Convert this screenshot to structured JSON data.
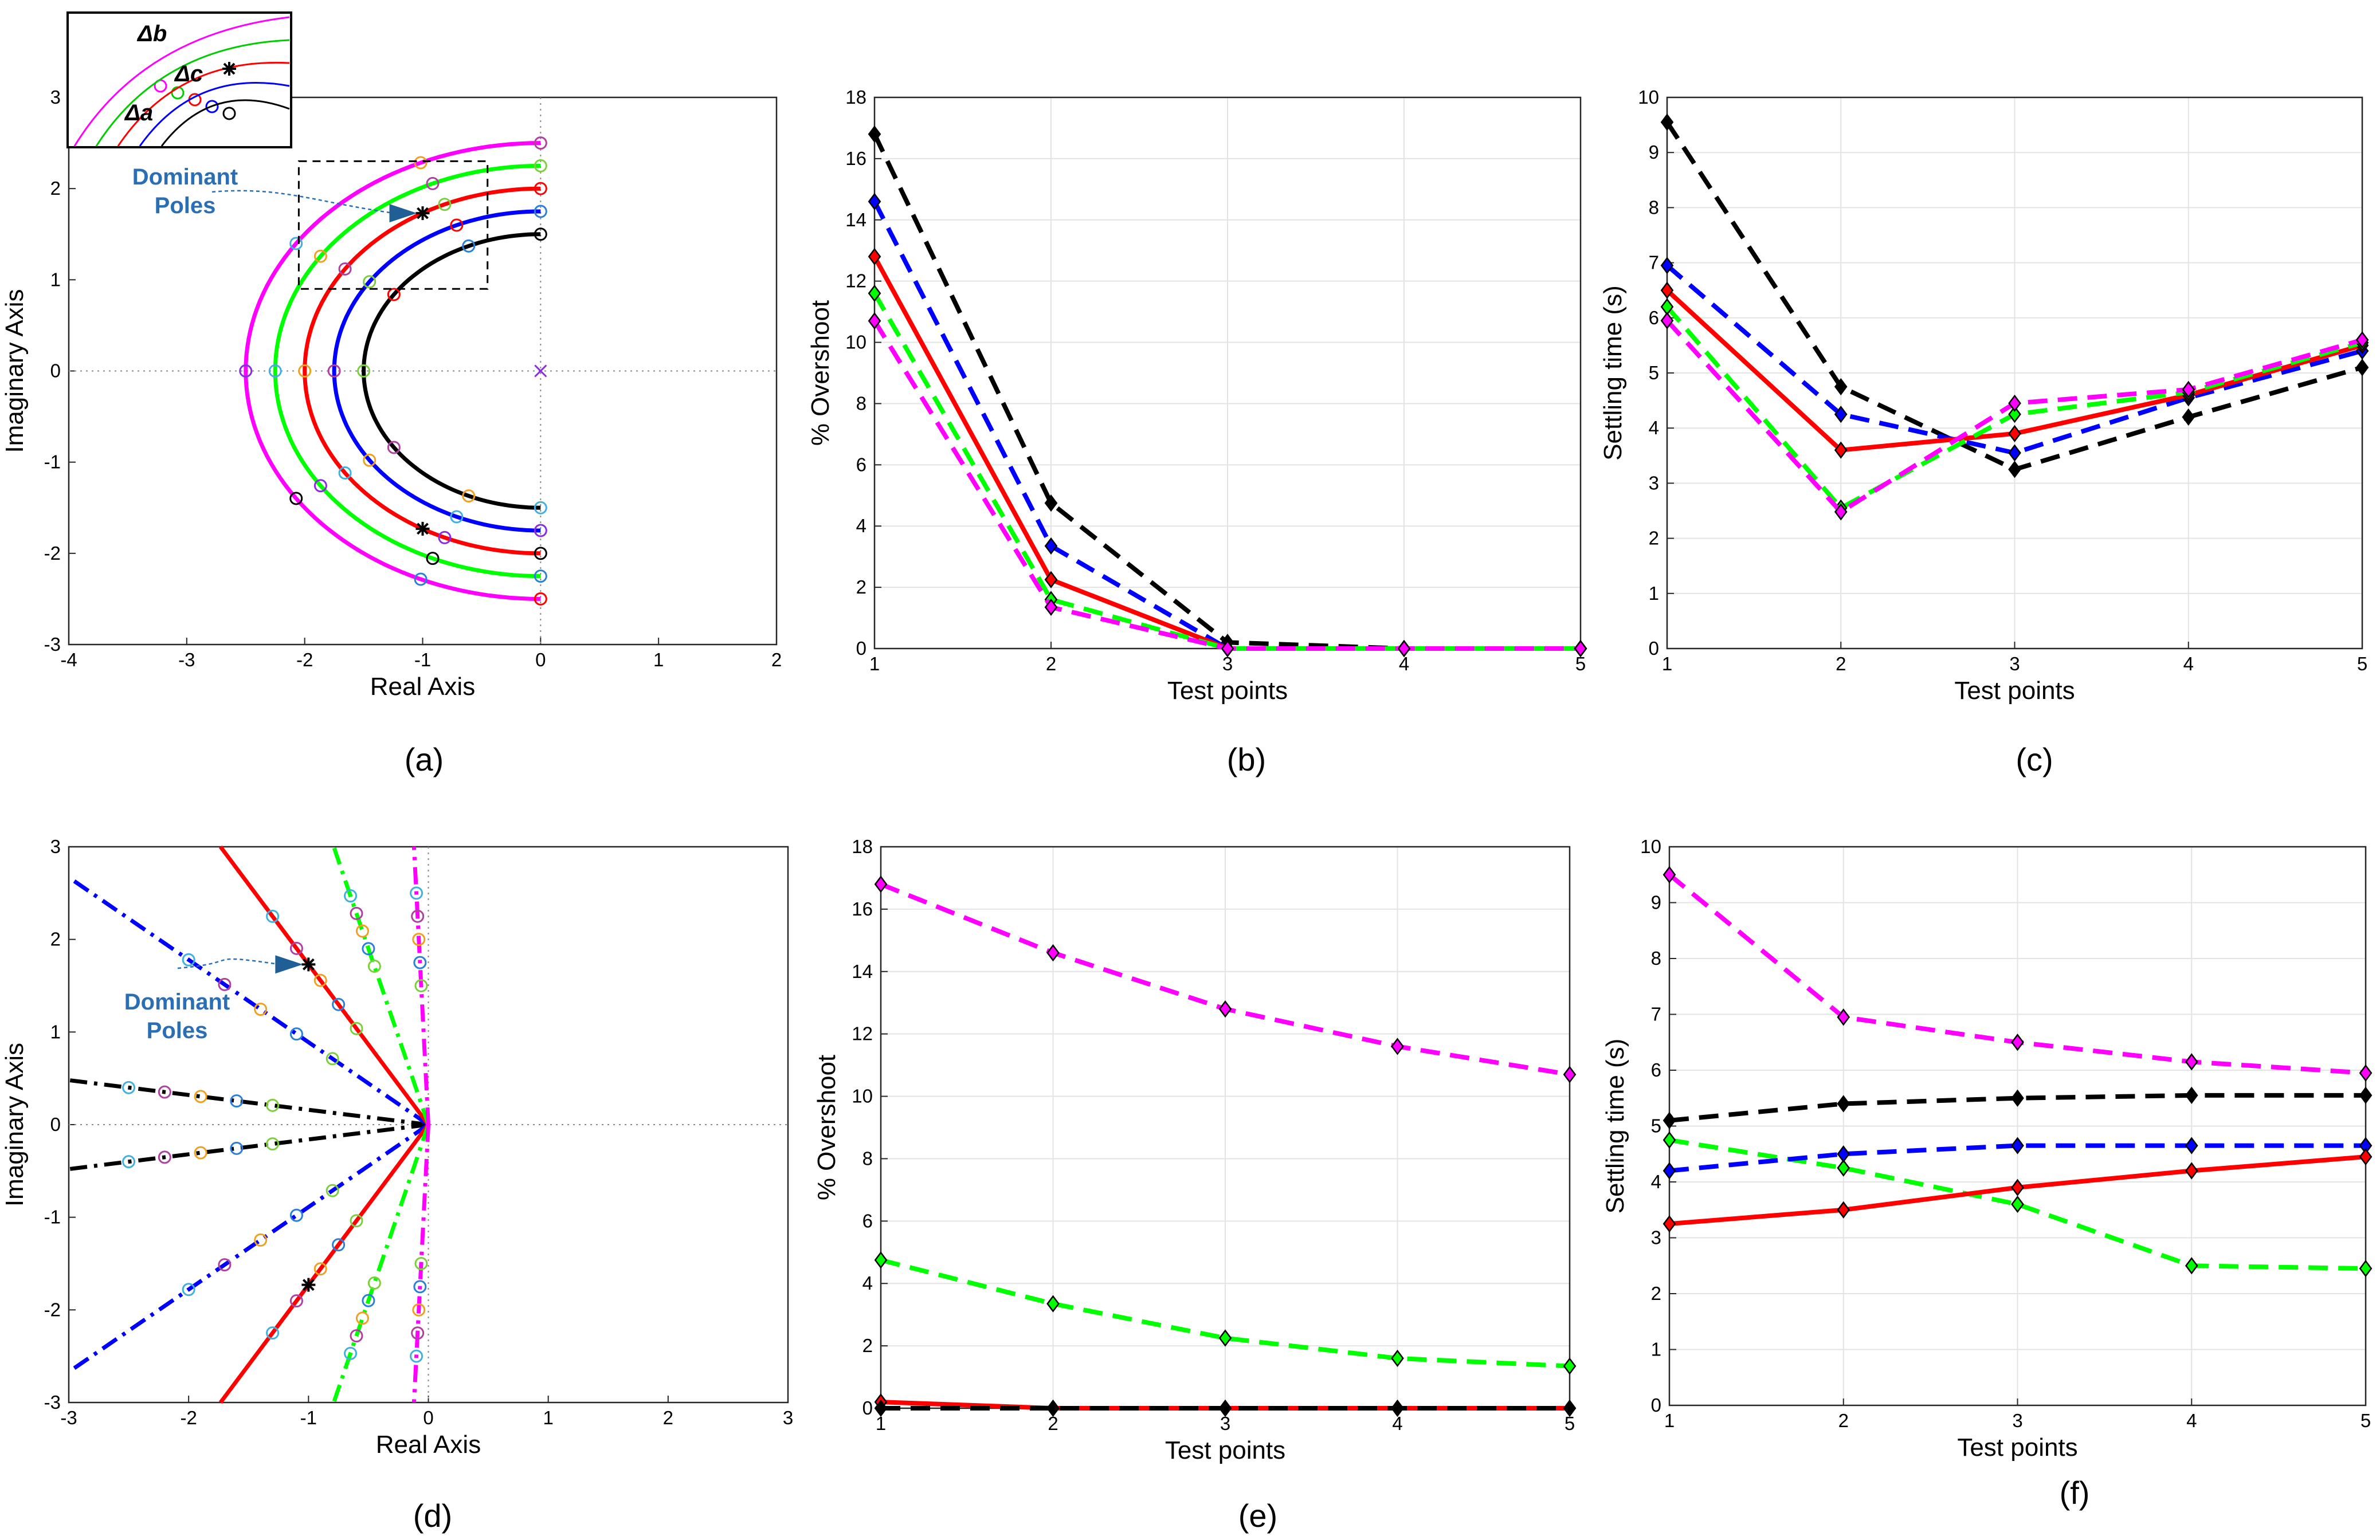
{
  "colors": {
    "black": "#000000",
    "blue": "#0000ff",
    "red": "#ff0000",
    "green": "#00ff00",
    "magenta": "#ff00ff",
    "annotation": "#2a6fb5"
  },
  "chart_data": [
    {
      "id": "a",
      "type": "scatter",
      "panel_label": "(a)",
      "xlabel": "Real Axis",
      "ylabel": "Imaginary Axis",
      "xlim": [
        -4,
        2
      ],
      "ylim": [
        -3,
        3
      ],
      "xticks": [
        -4,
        -3,
        -2,
        -1,
        0,
        1,
        2
      ],
      "yticks": [
        -3,
        -2,
        -1,
        0,
        1,
        2,
        3
      ],
      "xtick_labels": [
        "-4",
        "-3",
        "-2",
        "-1",
        "0",
        "1",
        "2"
      ],
      "ytick_labels": [
        "-3",
        "-2",
        "-1",
        "0",
        "1",
        "2",
        "3"
      ],
      "annotation": [
        "Dominant",
        "Poles"
      ],
      "inset_labels": [
        "Δb",
        "Δc",
        "Δa"
      ],
      "open_loop_pole": [
        0,
        0
      ],
      "dominant_poles": [
        [
          -1,
          1.73
        ],
        [
          -1,
          -1.73
        ]
      ],
      "series": [
        {
          "name": "black",
          "color": "#000000",
          "radius": 1.5
        },
        {
          "name": "blue",
          "color": "#0000ff",
          "radius": 1.75
        },
        {
          "name": "red",
          "color": "#ff0000",
          "radius": 2.0
        },
        {
          "name": "green",
          "color": "#00ff00",
          "radius": 2.25
        },
        {
          "name": "magenta",
          "color": "#ff00ff",
          "radius": 2.5
        }
      ]
    },
    {
      "id": "b",
      "type": "line",
      "panel_label": "(b)",
      "xlabel": "Test points",
      "ylabel": "% Overshoot",
      "x": [
        1,
        2,
        3,
        4,
        5
      ],
      "xlim": [
        1,
        5
      ],
      "ylim": [
        0,
        18
      ],
      "xticks": [
        1,
        2,
        3,
        4,
        5
      ],
      "yticks": [
        0,
        2,
        4,
        6,
        8,
        10,
        12,
        14,
        16,
        18
      ],
      "xtick_labels": [
        "1",
        "2",
        "3",
        "4",
        "5"
      ],
      "ytick_labels": [
        "0",
        "2",
        "4",
        "6",
        "8",
        "10",
        "12",
        "14",
        "16",
        "18"
      ],
      "series": [
        {
          "name": "black",
          "color": "#000000",
          "dash": true,
          "values": [
            16.8,
            4.75,
            0.2,
            0,
            0
          ]
        },
        {
          "name": "blue",
          "color": "#0000ff",
          "dash": true,
          "values": [
            14.6,
            3.35,
            0,
            0,
            0
          ]
        },
        {
          "name": "red",
          "color": "#ff0000",
          "dash": false,
          "values": [
            12.8,
            2.25,
            0,
            0,
            0
          ]
        },
        {
          "name": "green",
          "color": "#00ff00",
          "dash": true,
          "values": [
            11.6,
            1.6,
            0,
            0,
            0
          ]
        },
        {
          "name": "magenta",
          "color": "#ff00ff",
          "dash": true,
          "values": [
            10.7,
            1.35,
            0,
            0,
            0
          ]
        }
      ]
    },
    {
      "id": "c",
      "type": "line",
      "panel_label": "(c)",
      "xlabel": "Test points",
      "ylabel": "Settling time (s)",
      "x": [
        1,
        2,
        3,
        4,
        5
      ],
      "xlim": [
        1,
        5
      ],
      "ylim": [
        0,
        10
      ],
      "xticks": [
        1,
        2,
        3,
        4,
        5
      ],
      "yticks": [
        0,
        1,
        2,
        3,
        4,
        5,
        6,
        7,
        8,
        9,
        10
      ],
      "xtick_labels": [
        "1",
        "2",
        "3",
        "4",
        "5"
      ],
      "ytick_labels": [
        "0",
        "1",
        "2",
        "3",
        "4",
        "5",
        "6",
        "7",
        "8",
        "9",
        "10"
      ],
      "series": [
        {
          "name": "black",
          "color": "#000000",
          "dash": true,
          "values": [
            9.55,
            4.75,
            3.25,
            4.2,
            5.1
          ]
        },
        {
          "name": "blue",
          "color": "#0000ff",
          "dash": true,
          "values": [
            6.95,
            4.25,
            3.55,
            4.55,
            5.4
          ]
        },
        {
          "name": "red",
          "color": "#ff0000",
          "dash": false,
          "values": [
            6.5,
            3.6,
            3.9,
            4.6,
            5.5
          ]
        },
        {
          "name": "green",
          "color": "#00ff00",
          "dash": true,
          "values": [
            6.2,
            2.55,
            4.25,
            4.65,
            5.55
          ]
        },
        {
          "name": "magenta",
          "color": "#ff00ff",
          "dash": true,
          "values": [
            5.95,
            2.48,
            4.45,
            4.7,
            5.6
          ]
        }
      ]
    },
    {
      "id": "d",
      "type": "scatter",
      "panel_label": "(d)",
      "xlabel": "Real Axis",
      "ylabel": "Imaginary Axis",
      "xlim": [
        -3,
        3
      ],
      "ylim": [
        -3,
        3
      ],
      "xticks": [
        -3,
        -2,
        -1,
        0,
        1,
        2,
        3
      ],
      "yticks": [
        -3,
        -2,
        -1,
        0,
        1,
        2,
        3
      ],
      "xtick_labels": [
        "-3",
        "-2",
        "-1",
        "0",
        "1",
        "2",
        "3"
      ],
      "ytick_labels": [
        "-3",
        "-2",
        "-1",
        "0",
        "1",
        "2",
        "3"
      ],
      "annotation": [
        "Dominant",
        "Poles"
      ],
      "dominant_poles": [
        [
          -1,
          1.73
        ],
        [
          -1,
          -1.73
        ]
      ],
      "series": [
        {
          "name": "black",
          "color": "#000000",
          "slope": 0.16,
          "marker_x": [
            -2.5,
            -2.2,
            -1.9,
            -1.6,
            -1.3
          ]
        },
        {
          "name": "blue",
          "color": "#0000ff",
          "slope": 0.89,
          "marker_x": [
            -2.0,
            -1.7,
            -1.4,
            -1.1,
            -0.8
          ]
        },
        {
          "name": "red",
          "color": "#ff0000",
          "slope": 1.73,
          "marker_x": [
            -1.3,
            -1.1,
            -0.9,
            -0.75,
            -0.6
          ]
        },
        {
          "name": "green",
          "color": "#00ff00",
          "slope": 3.8,
          "marker_x": [
            -0.65,
            -0.6,
            -0.55,
            -0.5,
            -0.45
          ]
        },
        {
          "name": "magenta",
          "color": "#ff00ff",
          "slope": 25,
          "marker_x": [
            -0.1,
            -0.09,
            -0.08,
            -0.07,
            -0.06
          ]
        }
      ]
    },
    {
      "id": "e",
      "type": "line",
      "panel_label": "(e)",
      "xlabel": "Test points",
      "ylabel": "% Overshoot",
      "x": [
        1,
        2,
        3,
        4,
        5
      ],
      "xlim": [
        1,
        5
      ],
      "ylim": [
        0,
        18
      ],
      "xticks": [
        1,
        2,
        3,
        4,
        5
      ],
      "yticks": [
        0,
        2,
        4,
        6,
        8,
        10,
        12,
        14,
        16,
        18
      ],
      "xtick_labels": [
        "1",
        "2",
        "3",
        "4",
        "5"
      ],
      "ytick_labels": [
        "0",
        "2",
        "4",
        "6",
        "8",
        "10",
        "12",
        "14",
        "16",
        "18"
      ],
      "series": [
        {
          "name": "magenta",
          "color": "#ff00ff",
          "dash": true,
          "values": [
            16.8,
            14.6,
            12.8,
            11.6,
            10.7
          ]
        },
        {
          "name": "green",
          "color": "#00ff00",
          "dash": true,
          "values": [
            4.75,
            3.35,
            2.25,
            1.6,
            1.35
          ]
        },
        {
          "name": "red",
          "color": "#ff0000",
          "dash": false,
          "values": [
            0.2,
            0,
            0,
            0,
            0
          ]
        },
        {
          "name": "black",
          "color": "#000000",
          "dash": true,
          "values": [
            0,
            0,
            0,
            0,
            0
          ]
        }
      ]
    },
    {
      "id": "f",
      "type": "line",
      "panel_label": "(f)",
      "xlabel": "Test points",
      "ylabel": "Settling time (s)",
      "x": [
        1,
        2,
        3,
        4,
        5
      ],
      "xlim": [
        1,
        5
      ],
      "ylim": [
        0,
        10
      ],
      "xticks": [
        1,
        2,
        3,
        4,
        5
      ],
      "yticks": [
        0,
        1,
        2,
        3,
        4,
        5,
        6,
        7,
        8,
        9,
        10
      ],
      "xtick_labels": [
        "1",
        "2",
        "3",
        "4",
        "5"
      ],
      "ytick_labels": [
        "0",
        "1",
        "2",
        "3",
        "4",
        "5",
        "6",
        "7",
        "8",
        "9",
        "10"
      ],
      "series": [
        {
          "name": "magenta",
          "color": "#ff00ff",
          "dash": true,
          "values": [
            9.5,
            6.95,
            6.5,
            6.15,
            5.95
          ]
        },
        {
          "name": "black",
          "color": "#000000",
          "dash": true,
          "values": [
            5.1,
            5.4,
            5.5,
            5.55,
            5.55
          ]
        },
        {
          "name": "green",
          "color": "#00ff00",
          "dash": true,
          "values": [
            4.75,
            4.25,
            3.6,
            2.5,
            2.45
          ]
        },
        {
          "name": "blue",
          "color": "#0000ff",
          "dash": true,
          "values": [
            4.2,
            4.5,
            4.65,
            4.65,
            4.65
          ]
        },
        {
          "name": "red",
          "color": "#ff0000",
          "dash": false,
          "values": [
            3.25,
            3.5,
            3.9,
            4.2,
            4.45
          ]
        }
      ]
    }
  ]
}
